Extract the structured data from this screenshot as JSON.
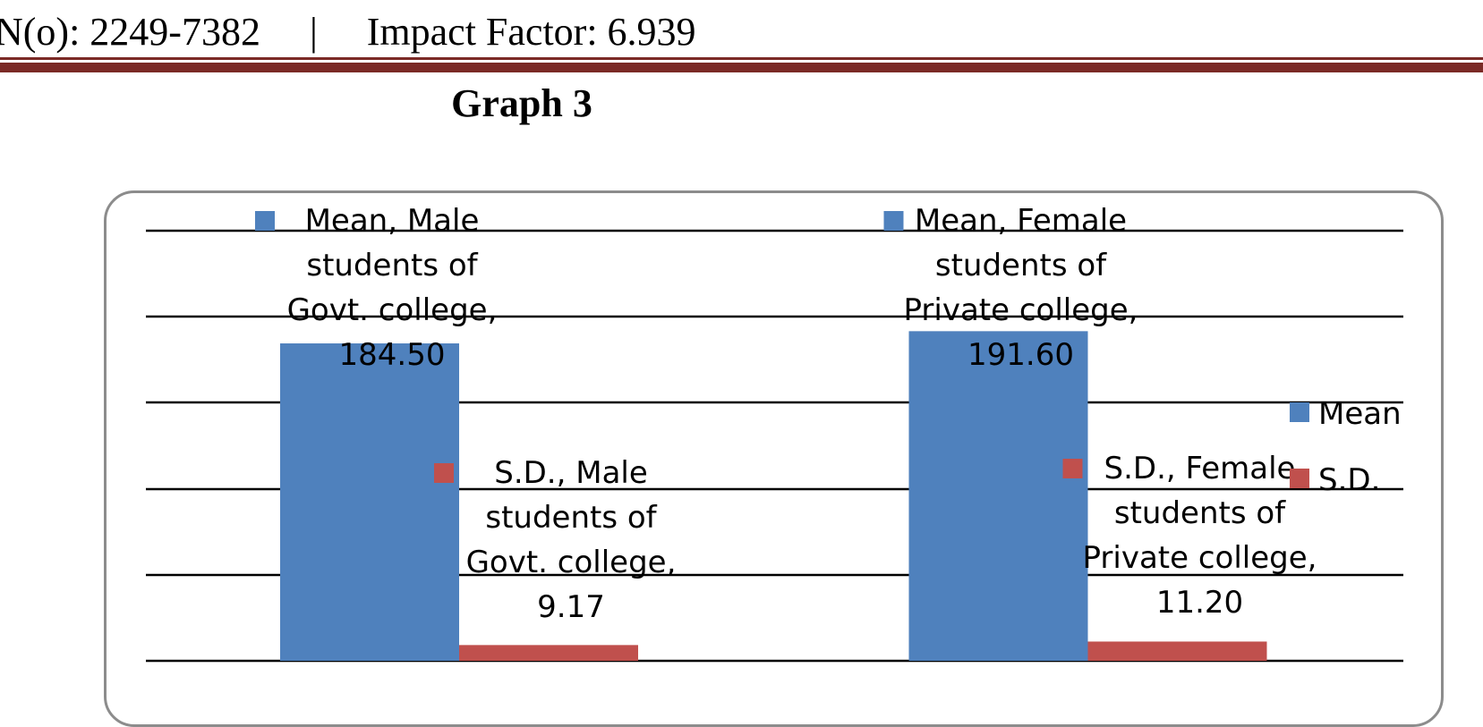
{
  "header": {
    "issn_text": "N(o): 2249-7382     |     Impact Factor: 6.939",
    "rule_color": "#7b2a26"
  },
  "graph_title": "Graph 3",
  "chart_data": {
    "type": "bar",
    "title": "",
    "categories": [
      "",
      ""
    ],
    "series": [
      {
        "name": "Mean",
        "color": "#4f81bd",
        "values": [
          184.5,
          191.6
        ],
        "data_labels": [
          [
            "Mean, Male",
            "students of",
            "Govt. college,",
            "184.50"
          ],
          [
            "Mean, Female",
            "students of",
            "Private college,",
            "191.60"
          ]
        ]
      },
      {
        "name": "S.D.",
        "color": "#c0504d",
        "values": [
          9.17,
          11.2
        ],
        "data_labels": [
          [
            "S.D., Male",
            "students of",
            "Govt. college,",
            "9.17"
          ],
          [
            "S.D., Female",
            "students of",
            "Private college,",
            "11.20"
          ]
        ]
      }
    ],
    "ylim": [
      0,
      250
    ],
    "y_gridline_step": 50,
    "y_tick_labels_shown": false,
    "grid": true,
    "legend_position": "right"
  }
}
